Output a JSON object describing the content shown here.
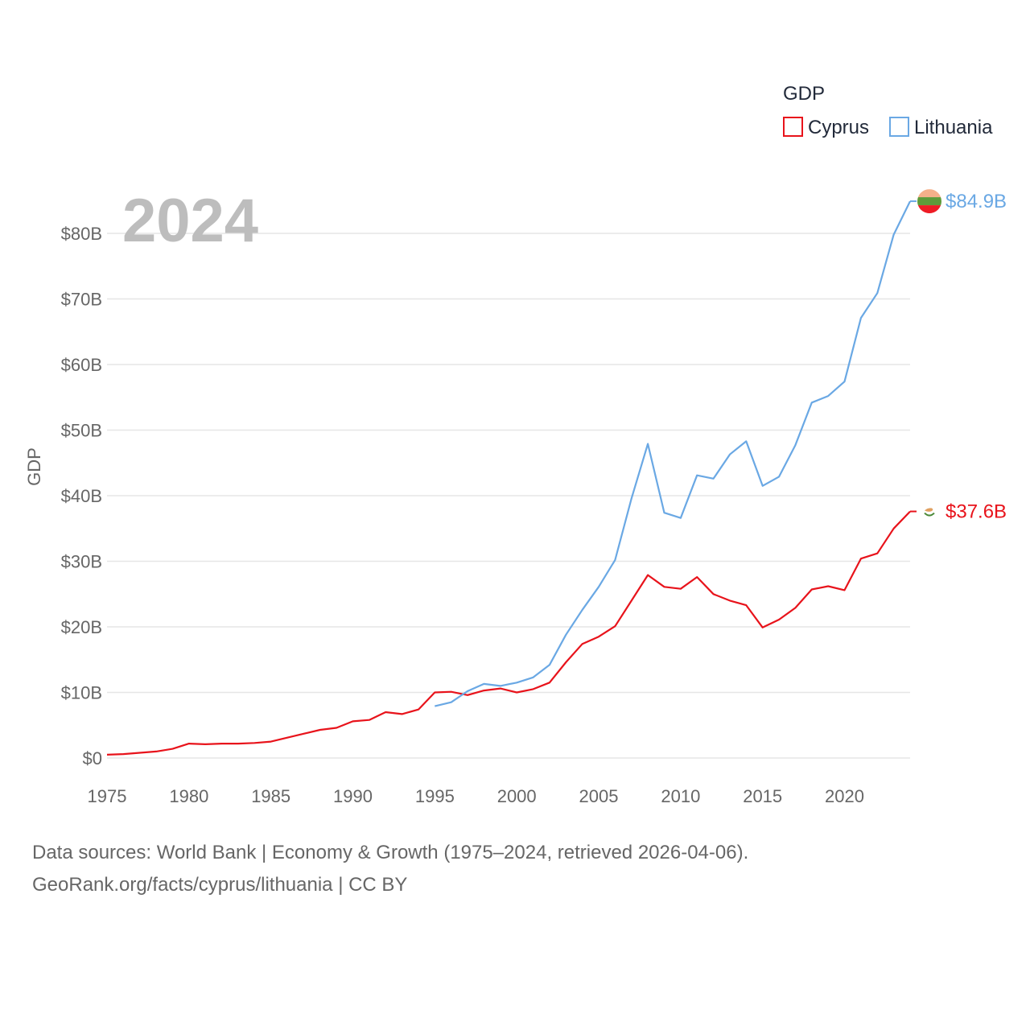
{
  "chart_data": {
    "type": "line",
    "title": "",
    "current_year_label": "2024",
    "xlabel": "",
    "ylabel": "GDP",
    "xlim": [
      1975,
      2024
    ],
    "ylim": [
      0,
      80
    ],
    "x_ticks": [
      1975,
      1980,
      1985,
      1990,
      1995,
      2000,
      2005,
      2010,
      2015,
      2020
    ],
    "x_tick_labels": [
      "1975",
      "1980",
      "1985",
      "1990",
      "1995",
      "2000",
      "2005",
      "2010",
      "2015",
      "2020"
    ],
    "y_ticks": [
      0,
      10,
      20,
      30,
      40,
      50,
      60,
      70,
      80
    ],
    "y_tick_labels": [
      "$0",
      "$10B",
      "$20B",
      "$30B",
      "$40B",
      "$50B",
      "$60B",
      "$70B",
      "$80B"
    ],
    "legend": {
      "title": "GDP",
      "placement": "top-right"
    },
    "units": "billions USD",
    "series": [
      {
        "name": "Cyprus",
        "color": "#e8131b",
        "end_label": "$37.6B",
        "flag_icon": "cyprus-flag-icon",
        "x": [
          1975,
          1976,
          1977,
          1978,
          1979,
          1980,
          1981,
          1982,
          1983,
          1984,
          1985,
          1986,
          1987,
          1988,
          1989,
          1990,
          1991,
          1992,
          1993,
          1994,
          1995,
          1996,
          1997,
          1998,
          1999,
          2000,
          2001,
          2002,
          2003,
          2004,
          2005,
          2006,
          2007,
          2008,
          2009,
          2010,
          2011,
          2012,
          2013,
          2014,
          2015,
          2016,
          2017,
          2018,
          2019,
          2020,
          2021,
          2022,
          2023,
          2024
        ],
        "values": [
          0.5,
          0.6,
          0.8,
          1.0,
          1.4,
          2.2,
          2.1,
          2.2,
          2.2,
          2.3,
          2.5,
          3.1,
          3.7,
          4.3,
          4.6,
          5.6,
          5.8,
          7.0,
          6.7,
          7.4,
          10.0,
          10.1,
          9.6,
          10.3,
          10.6,
          10.0,
          10.5,
          11.5,
          14.6,
          17.4,
          18.5,
          20.1,
          24.0,
          27.9,
          26.1,
          25.8,
          27.6,
          25.0,
          24.0,
          23.3,
          19.9,
          21.1,
          22.9,
          25.7,
          26.2,
          25.6,
          30.4,
          31.2,
          35.0,
          37.6
        ]
      },
      {
        "name": "Lithuania",
        "color": "#6aa8e4",
        "end_label": "$84.9B",
        "flag_icon": "lithuania-flag-icon",
        "x": [
          1995,
          1996,
          1997,
          1998,
          1999,
          2000,
          2001,
          2002,
          2003,
          2004,
          2005,
          2006,
          2007,
          2008,
          2009,
          2010,
          2011,
          2012,
          2013,
          2014,
          2015,
          2016,
          2017,
          2018,
          2019,
          2020,
          2021,
          2022,
          2023,
          2024
        ],
        "values": [
          7.9,
          8.5,
          10.2,
          11.3,
          11.0,
          11.5,
          12.3,
          14.2,
          18.8,
          22.6,
          26.1,
          30.2,
          39.6,
          47.9,
          37.4,
          36.6,
          43.1,
          42.6,
          46.3,
          48.3,
          41.5,
          42.9,
          47.7,
          54.2,
          55.2,
          57.4,
          67.1,
          70.9,
          79.8,
          84.9
        ]
      }
    ]
  },
  "footer": {
    "line1": "Data sources: World Bank | Economy & Growth (1975–2024, retrieved 2026-04-06).",
    "line2": "GeoRank.org/facts/cyprus/lithuania | CC BY"
  }
}
